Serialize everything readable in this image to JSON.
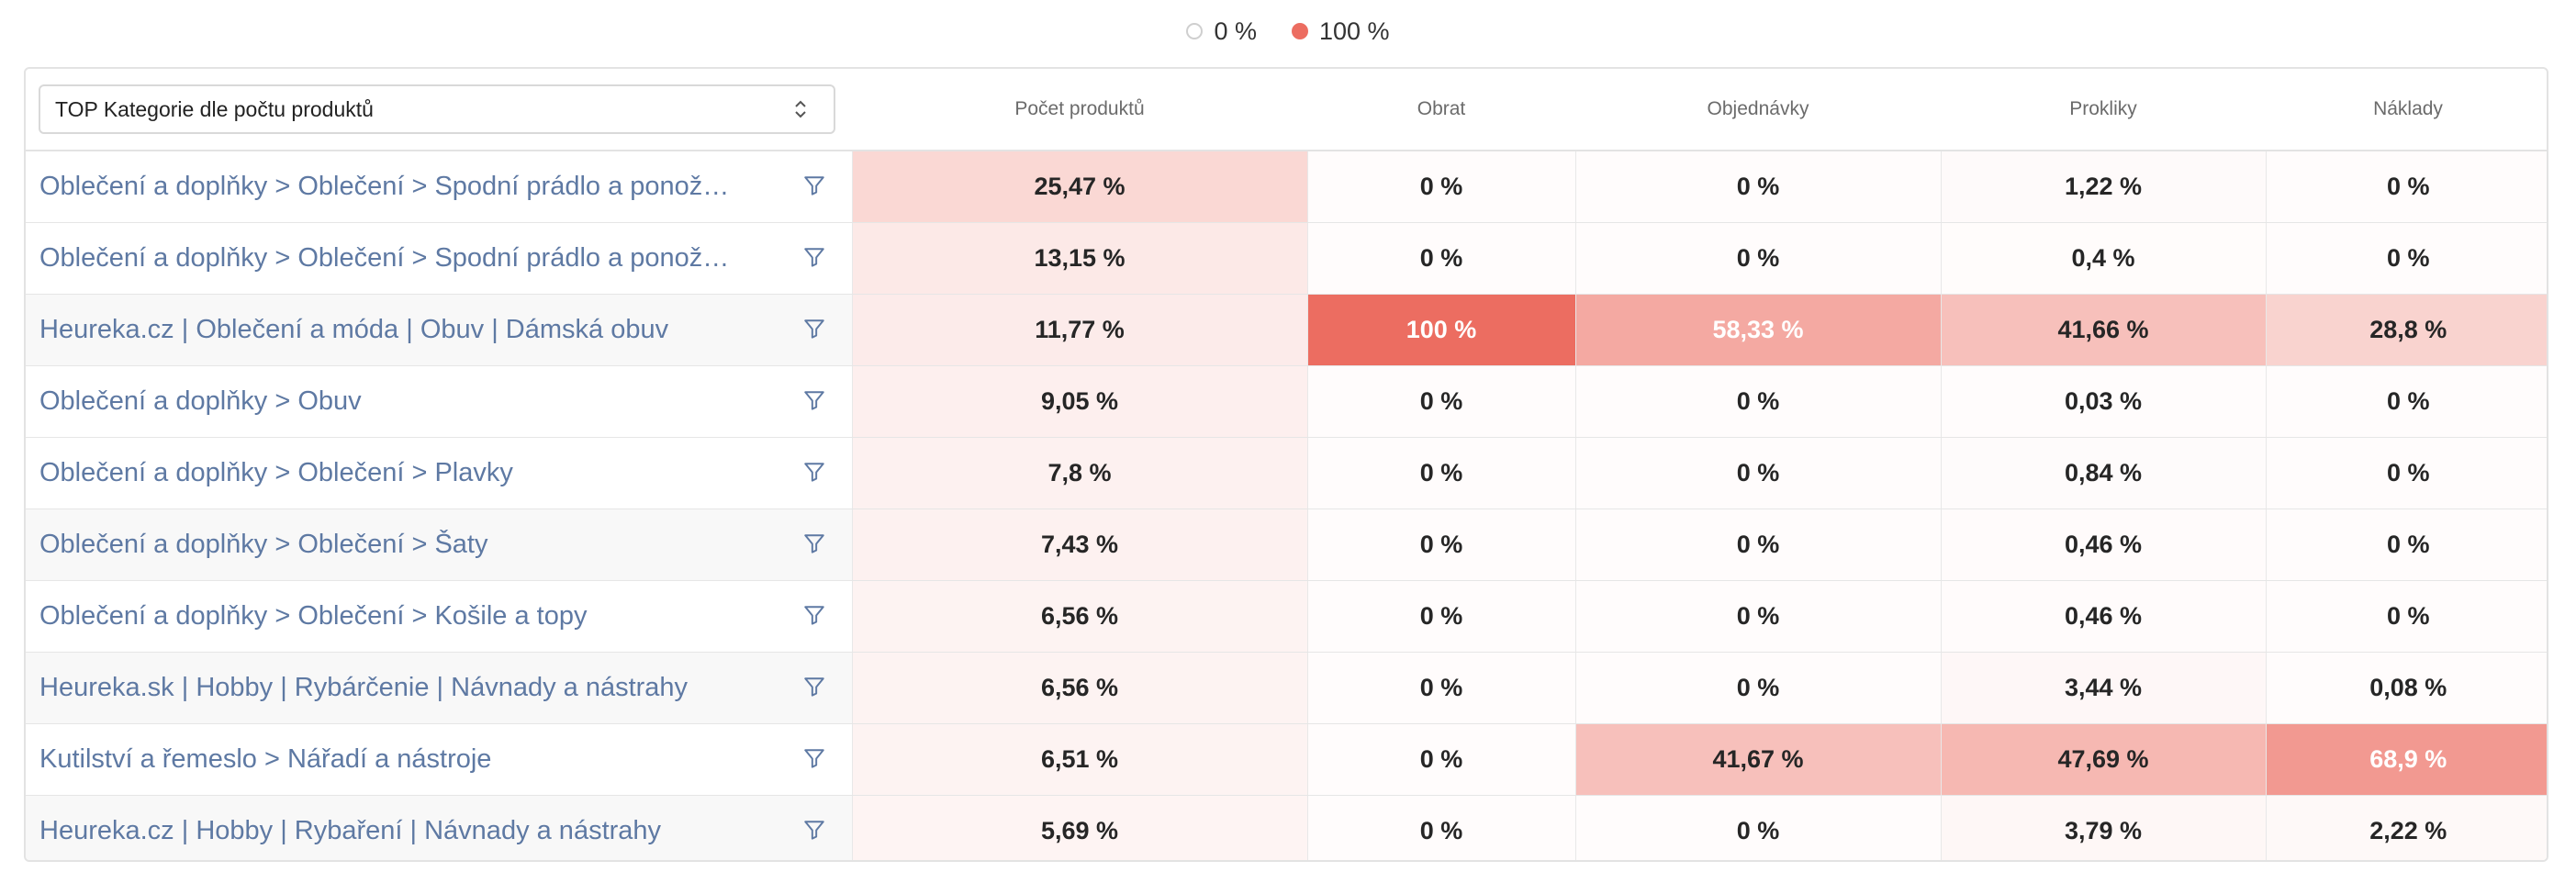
{
  "legend": {
    "min_label": "0 %",
    "max_label": "100 %",
    "min_color": "#ffffff",
    "max_color": "#ec6d61"
  },
  "select": {
    "value": "TOP Kategorie dle počtu produktů"
  },
  "columns": [
    "Počet produktů",
    "Obrat",
    "Objednávky",
    "Prokliky",
    "Náklady"
  ],
  "rows": [
    {
      "category": "Oblečení a doplňky > Oblečení > Spodní prádlo a ponožky > Ponožky",
      "cells": [
        {
          "text": "25,47 %",
          "level": 25.47
        },
        {
          "text": "0 %",
          "level": 0
        },
        {
          "text": "0 %",
          "level": 0
        },
        {
          "text": "1,22 %",
          "level": 1.22
        },
        {
          "text": "0 %",
          "level": 0
        }
      ]
    },
    {
      "category": "Oblečení a doplňky > Oblečení > Spodní prádlo a ponožky > Spodní prádlo",
      "cells": [
        {
          "text": "13,15 %",
          "level": 13.15
        },
        {
          "text": "0 %",
          "level": 0
        },
        {
          "text": "0 %",
          "level": 0
        },
        {
          "text": "0,4 %",
          "level": 0.4
        },
        {
          "text": "0 %",
          "level": 0
        }
      ]
    },
    {
      "category": "Heureka.cz | Oblečení a móda | Obuv | Dámská obuv",
      "cells": [
        {
          "text": "11,77 %",
          "level": 11.77
        },
        {
          "text": "100 %",
          "level": 100
        },
        {
          "text": "58,33 %",
          "level": 58.33
        },
        {
          "text": "41,66 %",
          "level": 41.66
        },
        {
          "text": "28,8 %",
          "level": 28.8
        }
      ]
    },
    {
      "category": "Oblečení a doplňky > Obuv",
      "cells": [
        {
          "text": "9,05 %",
          "level": 9.05
        },
        {
          "text": "0 %",
          "level": 0
        },
        {
          "text": "0 %",
          "level": 0
        },
        {
          "text": "0,03 %",
          "level": 0.03
        },
        {
          "text": "0 %",
          "level": 0
        }
      ]
    },
    {
      "category": "Oblečení a doplňky > Oblečení > Plavky",
      "cells": [
        {
          "text": "7,8 %",
          "level": 7.8
        },
        {
          "text": "0 %",
          "level": 0
        },
        {
          "text": "0 %",
          "level": 0
        },
        {
          "text": "0,84 %",
          "level": 0.84
        },
        {
          "text": "0 %",
          "level": 0
        }
      ]
    },
    {
      "category": "Oblečení a doplňky > Oblečení > Šaty",
      "cells": [
        {
          "text": "7,43 %",
          "level": 7.43
        },
        {
          "text": "0 %",
          "level": 0
        },
        {
          "text": "0 %",
          "level": 0
        },
        {
          "text": "0,46 %",
          "level": 0.46
        },
        {
          "text": "0 %",
          "level": 0
        }
      ]
    },
    {
      "category": "Oblečení a doplňky > Oblečení > Košile a topy",
      "cells": [
        {
          "text": "6,56 %",
          "level": 6.56
        },
        {
          "text": "0 %",
          "level": 0
        },
        {
          "text": "0 %",
          "level": 0
        },
        {
          "text": "0,46 %",
          "level": 0.46
        },
        {
          "text": "0 %",
          "level": 0
        }
      ]
    },
    {
      "category": "Heureka.sk | Hobby | Rybárčenie | Návnady a nástrahy",
      "cells": [
        {
          "text": "6,56 %",
          "level": 6.56
        },
        {
          "text": "0 %",
          "level": 0
        },
        {
          "text": "0 %",
          "level": 0
        },
        {
          "text": "3,44 %",
          "level": 3.44
        },
        {
          "text": "0,08 %",
          "level": 0.08
        }
      ]
    },
    {
      "category": "Kutilství a řemeslo > Nářadí a nástroje",
      "cells": [
        {
          "text": "6,51 %",
          "level": 6.51
        },
        {
          "text": "0 %",
          "level": 0
        },
        {
          "text": "41,67 %",
          "level": 41.67
        },
        {
          "text": "47,69 %",
          "level": 47.69
        },
        {
          "text": "68,9 %",
          "level": 68.9
        }
      ]
    },
    {
      "category": "Heureka.cz | Hobby | Rybaření | Návnady a nástrahy",
      "cells": [
        {
          "text": "5,69 %",
          "level": 5.69
        },
        {
          "text": "0 %",
          "level": 0
        },
        {
          "text": "0 %",
          "level": 0
        },
        {
          "text": "3,79 %",
          "level": 3.79
        },
        {
          "text": "2,22 %",
          "level": 2.22
        }
      ]
    }
  ],
  "icons": {
    "filter": "filter-icon",
    "select_toggle": "chevron-up-down-icon"
  }
}
